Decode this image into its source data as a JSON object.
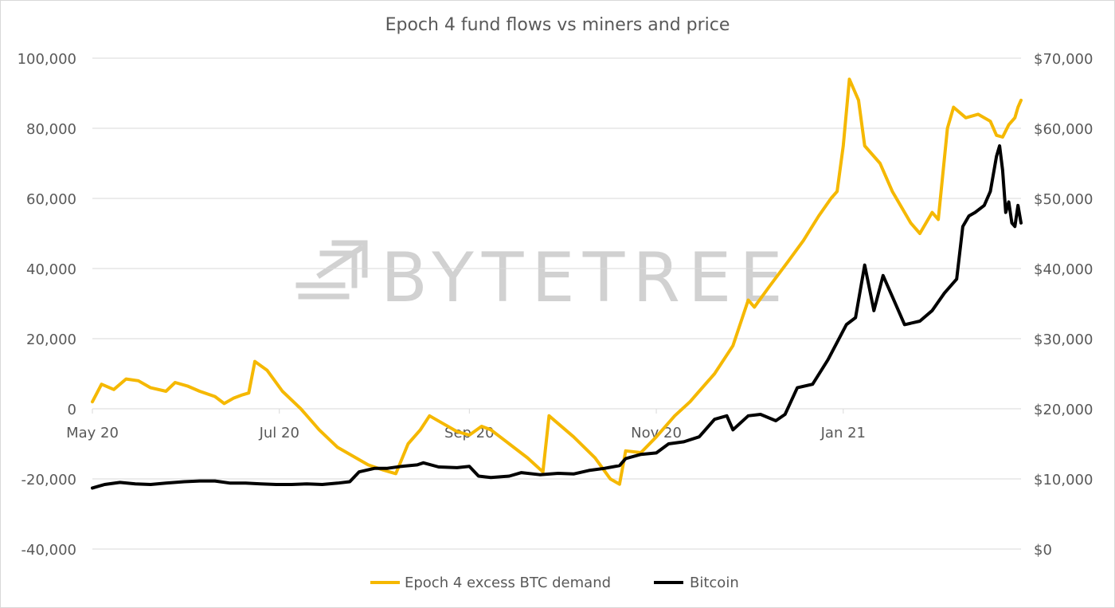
{
  "chart_data": {
    "type": "line",
    "title": "Epoch 4 fund flows vs miners and price",
    "watermark": "BYTETREE",
    "x_ticks": [
      "May 20",
      "Jul 20",
      "Sep 20",
      "Nov 20",
      "Jan 21"
    ],
    "x_tick_dates": [
      "2020-05-01",
      "2020-07-01",
      "2020-09-01",
      "2020-11-01",
      "2021-01-01"
    ],
    "x_range": [
      "2020-05-01",
      "2021-02-28"
    ],
    "y_left": {
      "range": [
        -40000,
        100000
      ],
      "ticks": [
        -40000,
        -20000,
        0,
        20000,
        40000,
        60000,
        80000,
        100000
      ],
      "tick_labels": [
        "-40,000",
        "-20,000",
        "0",
        "20,000",
        "40,000",
        "60,000",
        "80,000",
        "100,000"
      ]
    },
    "y_right": {
      "range": [
        0,
        70000
      ],
      "ticks": [
        0,
        10000,
        20000,
        30000,
        40000,
        50000,
        60000,
        70000
      ],
      "tick_labels": [
        "$0",
        "$10,000",
        "$20,000",
        "$30,000",
        "$40,000",
        "$50,000",
        "$60,000",
        "$70,000"
      ]
    },
    "grid": true,
    "legend_position": "bottom",
    "series": [
      {
        "name": "Epoch 4 excess BTC demand",
        "axis": "left",
        "color": "#f5b800",
        "points": [
          [
            "2020-05-01",
            2000
          ],
          [
            "2020-05-04",
            7000
          ],
          [
            "2020-05-08",
            5500
          ],
          [
            "2020-05-12",
            8500
          ],
          [
            "2020-05-16",
            8000
          ],
          [
            "2020-05-20",
            6000
          ],
          [
            "2020-05-25",
            5000
          ],
          [
            "2020-05-28",
            7500
          ],
          [
            "2020-06-01",
            6500
          ],
          [
            "2020-06-05",
            5000
          ],
          [
            "2020-06-10",
            3500
          ],
          [
            "2020-06-13",
            1500
          ],
          [
            "2020-06-16",
            3000
          ],
          [
            "2020-06-19",
            4000
          ],
          [
            "2020-06-21",
            4500
          ],
          [
            "2020-06-23",
            13500
          ],
          [
            "2020-06-27",
            11000
          ],
          [
            "2020-07-02",
            5000
          ],
          [
            "2020-07-08",
            0
          ],
          [
            "2020-07-14",
            -6000
          ],
          [
            "2020-07-20",
            -11000
          ],
          [
            "2020-07-25",
            -13500
          ],
          [
            "2020-07-30",
            -16000
          ],
          [
            "2020-08-04",
            -17500
          ],
          [
            "2020-08-08",
            -18500
          ],
          [
            "2020-08-12",
            -10000
          ],
          [
            "2020-08-16",
            -6000
          ],
          [
            "2020-08-19",
            -2000
          ],
          [
            "2020-08-24",
            -4500
          ],
          [
            "2020-08-28",
            -6500
          ],
          [
            "2020-09-01",
            -7500
          ],
          [
            "2020-09-05",
            -5000
          ],
          [
            "2020-09-08",
            -6000
          ],
          [
            "2020-09-14",
            -10000
          ],
          [
            "2020-09-20",
            -14000
          ],
          [
            "2020-09-25",
            -18000
          ],
          [
            "2020-09-27",
            -2000
          ],
          [
            "2020-10-05",
            -8000
          ],
          [
            "2020-10-12",
            -14000
          ],
          [
            "2020-10-17",
            -20000
          ],
          [
            "2020-10-20",
            -21500
          ],
          [
            "2020-10-22",
            -12000
          ],
          [
            "2020-10-27",
            -12500
          ],
          [
            "2020-11-01",
            -8000
          ],
          [
            "2020-11-07",
            -2000
          ],
          [
            "2020-11-12",
            2000
          ],
          [
            "2020-11-15",
            5000
          ],
          [
            "2020-11-20",
            10000
          ],
          [
            "2020-11-26",
            18000
          ],
          [
            "2020-12-01",
            31000
          ],
          [
            "2020-12-03",
            29000
          ],
          [
            "2020-12-08",
            35000
          ],
          [
            "2020-12-14",
            42000
          ],
          [
            "2020-12-19",
            48000
          ],
          [
            "2020-12-24",
            55000
          ],
          [
            "2020-12-28",
            60000
          ],
          [
            "2020-12-30",
            62000
          ],
          [
            "2021-01-01",
            75000
          ],
          [
            "2021-01-03",
            94000
          ],
          [
            "2021-01-06",
            88000
          ],
          [
            "2021-01-08",
            75000
          ],
          [
            "2021-01-13",
            70000
          ],
          [
            "2021-01-17",
            62000
          ],
          [
            "2021-01-23",
            53000
          ],
          [
            "2021-01-26",
            50000
          ],
          [
            "2021-01-30",
            56000
          ],
          [
            "2021-02-01",
            54000
          ],
          [
            "2021-02-04",
            80000
          ],
          [
            "2021-02-06",
            86000
          ],
          [
            "2021-02-10",
            83000
          ],
          [
            "2021-02-14",
            84000
          ],
          [
            "2021-02-18",
            82000
          ],
          [
            "2021-02-20",
            78000
          ],
          [
            "2021-02-22",
            77500
          ],
          [
            "2021-02-24",
            81000
          ],
          [
            "2021-02-26",
            83000
          ],
          [
            "2021-02-27",
            86000
          ],
          [
            "2021-02-28",
            88000
          ]
        ]
      },
      {
        "name": "Bitcoin",
        "axis": "right",
        "color": "#000000",
        "points": [
          [
            "2020-05-01",
            8700
          ],
          [
            "2020-05-05",
            9200
          ],
          [
            "2020-05-10",
            9500
          ],
          [
            "2020-05-15",
            9300
          ],
          [
            "2020-05-20",
            9200
          ],
          [
            "2020-05-25",
            9400
          ],
          [
            "2020-05-31",
            9600
          ],
          [
            "2020-06-05",
            9700
          ],
          [
            "2020-06-10",
            9700
          ],
          [
            "2020-06-15",
            9400
          ],
          [
            "2020-06-20",
            9400
          ],
          [
            "2020-06-25",
            9300
          ],
          [
            "2020-06-30",
            9200
          ],
          [
            "2020-07-05",
            9200
          ],
          [
            "2020-07-10",
            9300
          ],
          [
            "2020-07-15",
            9200
          ],
          [
            "2020-07-20",
            9400
          ],
          [
            "2020-07-24",
            9600
          ],
          [
            "2020-07-27",
            11000
          ],
          [
            "2020-08-01",
            11500
          ],
          [
            "2020-08-05",
            11500
          ],
          [
            "2020-08-10",
            11800
          ],
          [
            "2020-08-15",
            12000
          ],
          [
            "2020-08-17",
            12300
          ],
          [
            "2020-08-22",
            11700
          ],
          [
            "2020-08-28",
            11600
          ],
          [
            "2020-09-01",
            11800
          ],
          [
            "2020-09-04",
            10400
          ],
          [
            "2020-09-08",
            10200
          ],
          [
            "2020-09-14",
            10400
          ],
          [
            "2020-09-18",
            10900
          ],
          [
            "2020-09-24",
            10600
          ],
          [
            "2020-09-30",
            10800
          ],
          [
            "2020-10-05",
            10700
          ],
          [
            "2020-10-10",
            11200
          ],
          [
            "2020-10-15",
            11500
          ],
          [
            "2020-10-20",
            11900
          ],
          [
            "2020-10-22",
            12900
          ],
          [
            "2020-10-27",
            13500
          ],
          [
            "2020-11-01",
            13700
          ],
          [
            "2020-11-05",
            15000
          ],
          [
            "2020-11-10",
            15300
          ],
          [
            "2020-11-15",
            16000
          ],
          [
            "2020-11-20",
            18500
          ],
          [
            "2020-11-24",
            19000
          ],
          [
            "2020-11-26",
            17000
          ],
          [
            "2020-12-01",
            19000
          ],
          [
            "2020-12-05",
            19200
          ],
          [
            "2020-12-10",
            18300
          ],
          [
            "2020-12-13",
            19200
          ],
          [
            "2020-12-17",
            23000
          ],
          [
            "2020-12-22",
            23500
          ],
          [
            "2020-12-27",
            27000
          ],
          [
            "2021-01-02",
            32000
          ],
          [
            "2021-01-05",
            33000
          ],
          [
            "2021-01-08",
            40500
          ],
          [
            "2021-01-11",
            34000
          ],
          [
            "2021-01-14",
            39000
          ],
          [
            "2021-01-17",
            36000
          ],
          [
            "2021-01-21",
            32000
          ],
          [
            "2021-01-26",
            32500
          ],
          [
            "2021-01-30",
            34000
          ],
          [
            "2021-02-03",
            36500
          ],
          [
            "2021-02-07",
            38500
          ],
          [
            "2021-02-09",
            46000
          ],
          [
            "2021-02-11",
            47500
          ],
          [
            "2021-02-13",
            48000
          ],
          [
            "2021-02-16",
            49000
          ],
          [
            "2021-02-18",
            51000
          ],
          [
            "2021-02-20",
            56000
          ],
          [
            "2021-02-21",
            57500
          ],
          [
            "2021-02-22",
            54000
          ],
          [
            "2021-02-23",
            48000
          ],
          [
            "2021-02-24",
            49500
          ],
          [
            "2021-02-25",
            46500
          ],
          [
            "2021-02-26",
            46000
          ],
          [
            "2021-02-27",
            49000
          ],
          [
            "2021-02-28",
            46500
          ]
        ]
      }
    ]
  }
}
